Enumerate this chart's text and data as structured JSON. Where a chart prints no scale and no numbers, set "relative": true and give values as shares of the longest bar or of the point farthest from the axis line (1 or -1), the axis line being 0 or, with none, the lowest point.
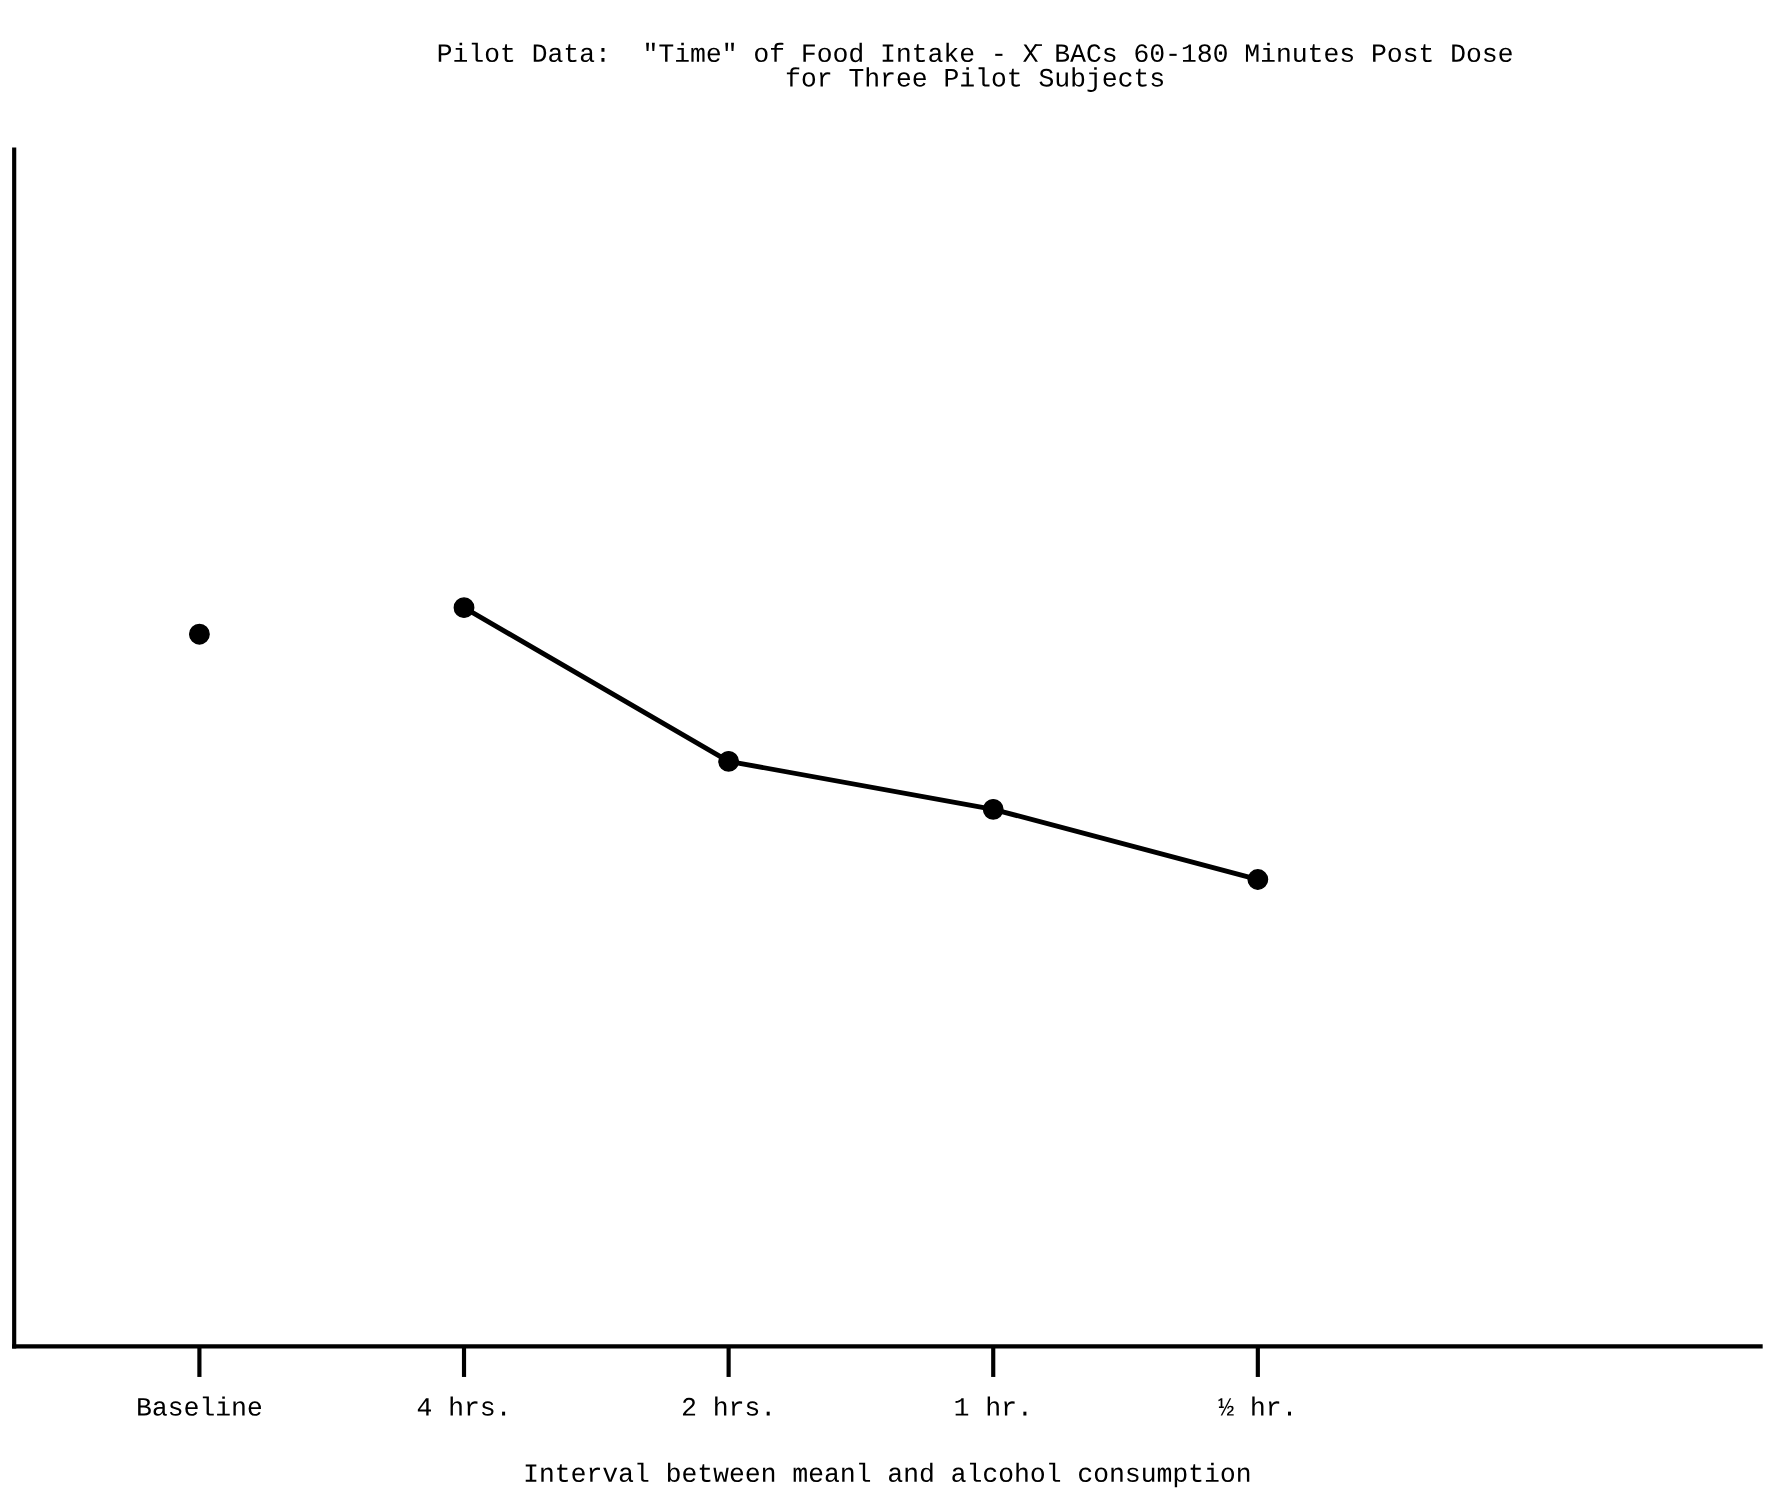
{
  "chart_data": {
    "type": "line",
    "title": "Pilot Data:  \"Time\" of Food Intake - X̄ BACs 60-180 Minutes Post Dose\nfor Three Pilot Subjects",
    "xlabel": "Interval between meanl and alcohol consumption",
    "categories": [
      "Baseline",
      "4 hrs.",
      "2 hrs.",
      "1 hr.",
      "½ hr."
    ],
    "relative": true,
    "marker": "circle",
    "line_style": "solid",
    "grid": false,
    "series": [
      {
        "type": "scatter",
        "color": "#000000",
        "values": [
          0.964,
          null,
          null,
          null,
          null
        ]
      },
      {
        "color": "#000000",
        "values": [
          null,
          1.0,
          0.792,
          0.727,
          0.632
        ]
      }
    ]
  }
}
